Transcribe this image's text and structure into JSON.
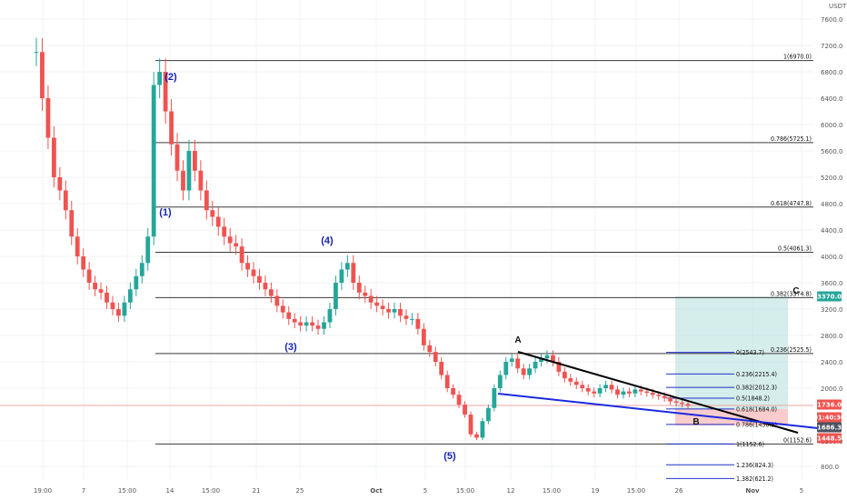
{
  "chart_data": {
    "type": "candlestick",
    "currency": "USDT",
    "y_ticks": [
      "7600.0",
      "7200.0",
      "6800.0",
      "6400.0",
      "6000.0",
      "5600.0",
      "5200.0",
      "4800.0",
      "4400.0",
      "4000.0",
      "3600.0",
      "3200.0",
      "2800.0",
      "2400.0",
      "2000.0",
      "1200.0",
      "800.0"
    ],
    "x_ticks": [
      "19:00",
      "7",
      "15:00",
      "14",
      "15:00",
      "21",
      "25",
      "Oct",
      "5",
      "15:00",
      "12",
      "15:00",
      "19",
      "15:00",
      "26",
      "Nov",
      "5"
    ],
    "fib_main": [
      {
        "label": "1(6970.0)",
        "value": 6970.0
      },
      {
        "label": "0.786(5725.1)",
        "value": 5725.1
      },
      {
        "label": "0.618(4747.8)",
        "value": 4747.8
      },
      {
        "label": "0.5(4061.3)",
        "value": 4061.3
      },
      {
        "label": "0.382(3374.8)",
        "value": 3374.8
      },
      {
        "label": "0.236(2525.5)",
        "value": 2525.5
      },
      {
        "label": "0(1152.6)",
        "value": 1152.6
      }
    ],
    "fib_ext": [
      {
        "label": "0(2543.7)",
        "value": 2543.7
      },
      {
        "label": "0.236(2215.4)",
        "value": 2215.4
      },
      {
        "label": "0.382(2012.3)",
        "value": 2012.3
      },
      {
        "label": "0.5(1848.2)",
        "value": 1848.2
      },
      {
        "label": "0.618(1684.0)",
        "value": 1684.0
      },
      {
        "label": "0.786(1450.3)",
        "value": 1450.3
      },
      {
        "label": "1(1152.6)",
        "value": 1152.6
      },
      {
        "label": "1.236(824.3)",
        "value": 824.3
      },
      {
        "label": "1.382(621.2)",
        "value": 621.2
      }
    ],
    "wave_labels": [
      "(1)",
      "(2)",
      "(3)",
      "(4)",
      "(5)",
      "A",
      "B",
      "C"
    ],
    "price_tags": [
      {
        "text": "3370.0",
        "color": "#26a69a"
      },
      {
        "text": "1736.0",
        "color": "#ef5350"
      },
      {
        "text": "01:40:30",
        "color": "#ef5350"
      },
      {
        "text": "1686.3",
        "color": "#4a5360"
      },
      {
        "text": "1448.5",
        "color": "#ef5350"
      }
    ],
    "series": [
      {
        "name": "price",
        "close": [
          7100,
          6400,
          5800,
          5200,
          5000,
          4700,
          4300,
          4000,
          3800,
          3600,
          3500,
          3450,
          3300,
          3200,
          3100,
          3300,
          3500,
          3700,
          3900,
          4300,
          6600,
          6800,
          6200,
          5700,
          5300,
          5000,
          5600,
          5300,
          5000,
          4700,
          4600,
          4450,
          4300,
          4200,
          4150,
          3900,
          3800,
          3700,
          3600,
          3500,
          3400,
          3250,
          3150,
          3050,
          3000,
          2950,
          3000,
          2950,
          2900,
          3000,
          3200,
          3600,
          3800,
          3900,
          3600,
          3450,
          3400,
          3300,
          3250,
          3200,
          3150,
          3200,
          3100,
          3050,
          3050,
          2900,
          2650,
          2550,
          2400,
          2200,
          2000,
          1900,
          1750,
          1600,
          1300,
          1250,
          1500,
          1700,
          2000,
          2200,
          2400,
          2450,
          2300,
          2200,
          2300,
          2400,
          2450,
          2500,
          2400,
          2250,
          2150,
          2100,
          2050,
          2000,
          1950,
          1920,
          2000,
          2050,
          1980,
          1900,
          1950,
          1920,
          1980,
          1950,
          1930,
          1900,
          1880,
          1850,
          1800,
          1780,
          1760,
          1736
        ]
      }
    ]
  }
}
